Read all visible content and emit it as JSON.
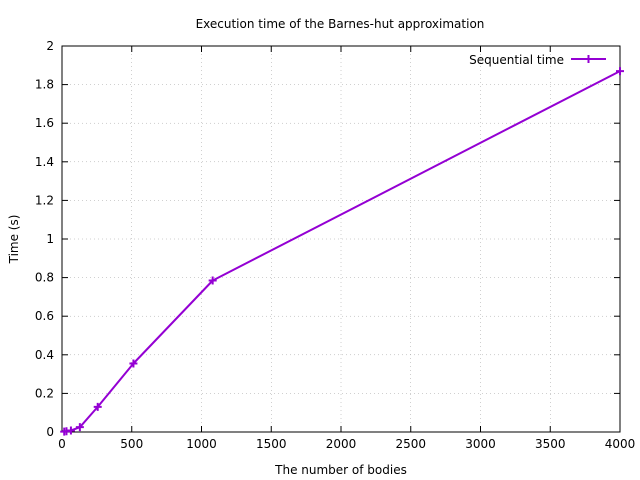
{
  "chart_data": {
    "type": "line",
    "title": "Execution time of the Barnes-hut approximation",
    "xlabel": "The number of bodies",
    "ylabel": "Time (s)",
    "xlim": [
      0,
      4000
    ],
    "ylim": [
      0,
      2
    ],
    "x_ticks": [
      "0",
      "500",
      "1000",
      "1500",
      "2000",
      "2500",
      "3000",
      "3500",
      "4000"
    ],
    "y_ticks": [
      "0",
      "0.2",
      "0.4",
      "0.6",
      "0.8",
      "1",
      "1.2",
      "1.4",
      "1.6",
      "1.8",
      "2"
    ],
    "grid": true,
    "legend_position": "top-right",
    "series": [
      {
        "name": "Sequential time",
        "color": "#9400d3",
        "x": [
          16,
          32,
          64,
          128,
          256,
          512,
          1080,
          4000
        ],
        "y": [
          0.002,
          0.004,
          0.008,
          0.025,
          0.13,
          0.355,
          0.785,
          1.87
        ]
      }
    ]
  }
}
